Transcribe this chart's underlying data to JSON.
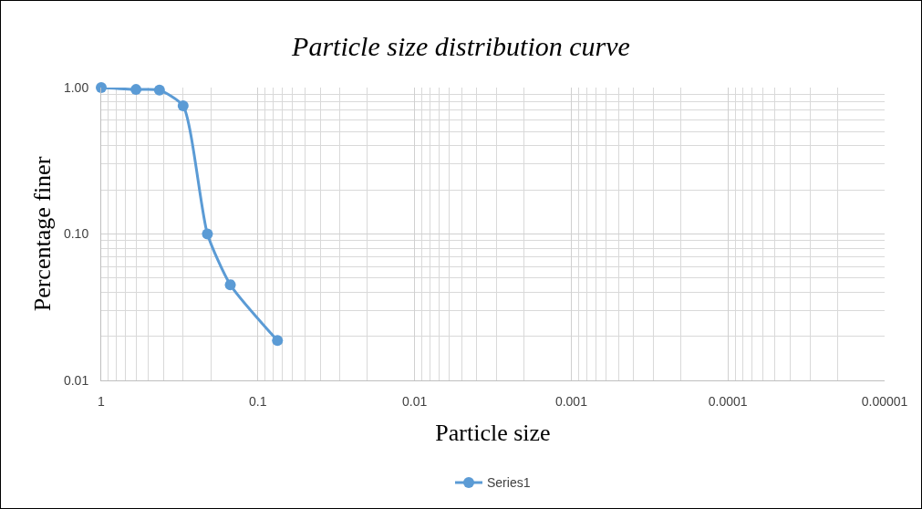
{
  "chart_data": {
    "type": "line",
    "title": "Particle size distribution curve",
    "xlabel": "Particle size",
    "ylabel": "Percentage finer",
    "x": [
      1,
      0.6,
      0.425,
      0.3,
      0.21,
      0.15,
      0.075
    ],
    "series": [
      {
        "name": "Series1",
        "color": "#5b9bd5",
        "values": [
          1.0,
          0.97,
          0.96,
          0.75,
          0.1,
          0.045,
          0.0187
        ]
      }
    ],
    "log": "xy",
    "xlim": [
      1,
      1e-05
    ],
    "ylim": [
      0.01,
      1
    ],
    "xticks": [
      {
        "value": 1,
        "label": "1"
      },
      {
        "value": 0.1,
        "label": "0.1"
      },
      {
        "value": 0.01,
        "label": "0.01"
      },
      {
        "value": 0.001,
        "label": "0.001"
      },
      {
        "value": 0.0001,
        "label": "0.0001"
      },
      {
        "value": 1e-05,
        "label": "0.00001"
      }
    ],
    "yticks": [
      {
        "value": 0.01,
        "label": "0.01"
      },
      {
        "value": 0.1,
        "label": "0.10"
      },
      {
        "value": 1,
        "label": "1.00"
      }
    ],
    "grid": true,
    "legend": "bottom",
    "marker": "circle",
    "line_style": "solid"
  }
}
